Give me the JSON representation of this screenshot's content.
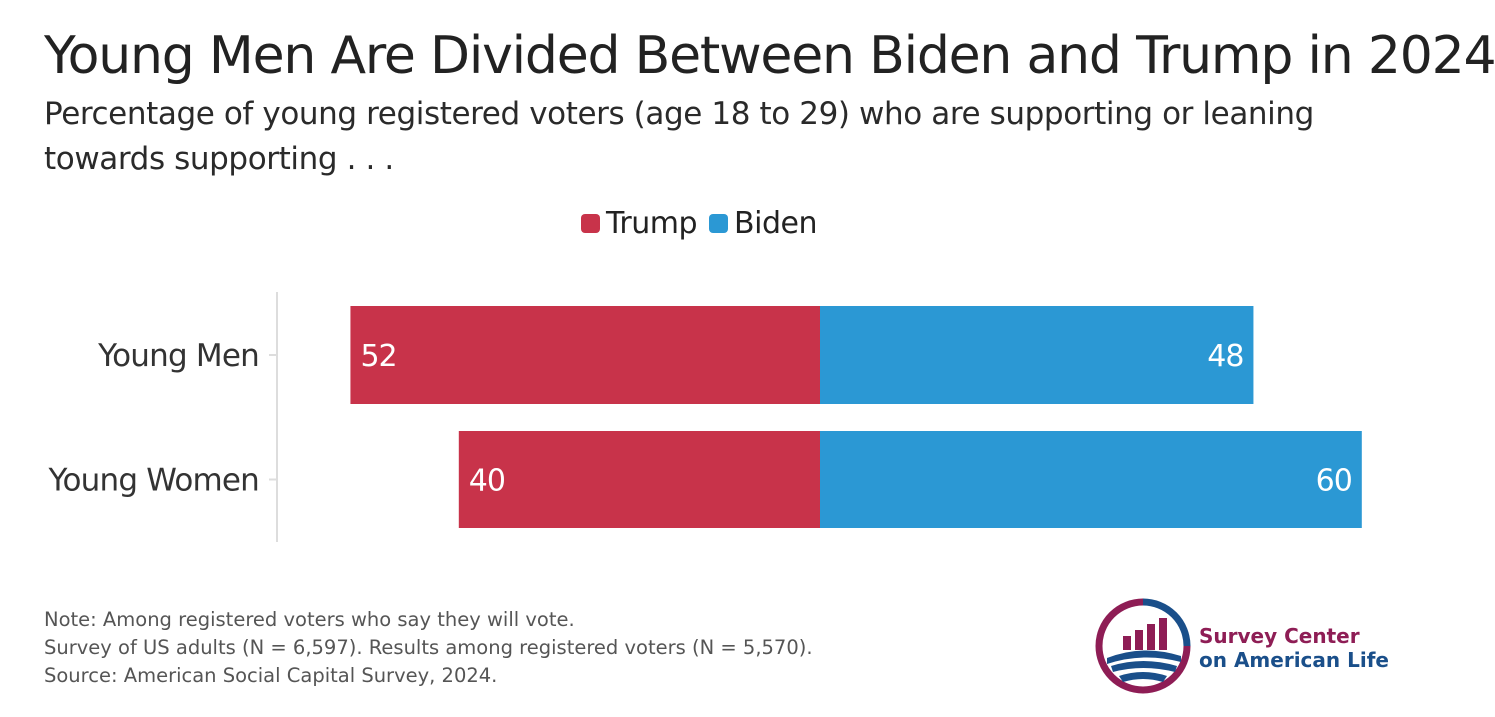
{
  "title": "Young Men Are Divided Between Biden and Trump in 2024",
  "subtitle": "Percentage of young registered voters (age 18 to 29) who are supporting or leaning towards supporting . . .",
  "legend": [
    {
      "label": "Trump",
      "color": "#c8334a"
    },
    {
      "label": "Biden",
      "color": "#2b98d4"
    }
  ],
  "chart_data": {
    "type": "bar",
    "orientation": "horizontal-diverging",
    "categories": [
      "Young Men",
      "Young Women"
    ],
    "series": [
      {
        "name": "Trump",
        "values": [
          52,
          40
        ],
        "color": "#c8334a"
      },
      {
        "name": "Biden",
        "values": [
          48,
          60
        ],
        "color": "#2b98d4"
      }
    ],
    "title": "Young Men Are Divided Between Biden and Trump in 2024",
    "legend_position": "top-center",
    "grid": false
  },
  "notes": [
    "Note: Among registered voters who say they will vote.",
    "Survey of US adults (N = 6,597). Results among registered voters (N = 5,570).",
    "Source: American Social Capital Survey, 2024."
  ],
  "logo": {
    "line1": "Survey Center",
    "line2": "on American Life",
    "color_primary": "#8e1d55",
    "color_secondary": "#1a4f8a"
  }
}
